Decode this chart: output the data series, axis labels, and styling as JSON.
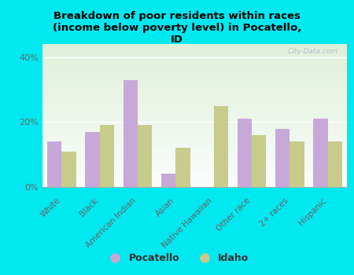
{
  "title": "Breakdown of poor residents within races\n(income below poverty level) in Pocatello,\nID",
  "categories": [
    "White",
    "Black",
    "American Indian",
    "Asian",
    "Native Hawaiian",
    "Other race",
    "2+ races",
    "Hispanic"
  ],
  "pocatello": [
    14,
    17,
    33,
    4,
    0,
    21,
    18,
    21
  ],
  "idaho": [
    11,
    19,
    19,
    12,
    25,
    16,
    14,
    14
  ],
  "pocatello_color": "#c8a8d8",
  "idaho_color": "#c8cc8a",
  "background_color": "#00e8f0",
  "yticks": [
    0,
    20,
    40
  ],
  "ylim": [
    0,
    44
  ],
  "bar_width": 0.38,
  "watermark": "City-Data.com",
  "legend_pocatello": "Pocatello",
  "legend_idaho": "Idaho",
  "grid_color": "#dddddd",
  "tick_label_color": "#666666"
}
